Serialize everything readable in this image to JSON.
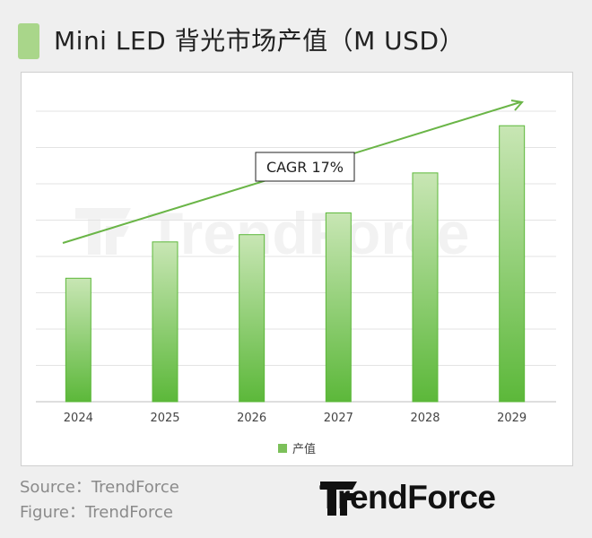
{
  "header": {
    "title": "Mini LED 背光市场产值（M USD）"
  },
  "chart_data": {
    "type": "bar",
    "categories": [
      "2024",
      "2025",
      "2026",
      "2027",
      "2028",
      "2029"
    ],
    "series": [
      {
        "name": "产值",
        "values": [
          34,
          44,
          46,
          52,
          63,
          76
        ]
      }
    ],
    "annotation": "CAGR 17%",
    "colors": {
      "bar_top": "#c8e6b4",
      "bar_bottom": "#5cb83a",
      "trend_arrow": "#6ab547"
    },
    "grid": true,
    "legend_position": "bottom"
  },
  "watermark": {
    "text": "TrendForce"
  },
  "footer": {
    "source": "Source：TrendForce",
    "figure": "Figure：TrendForce",
    "brand": "TrendForce"
  }
}
